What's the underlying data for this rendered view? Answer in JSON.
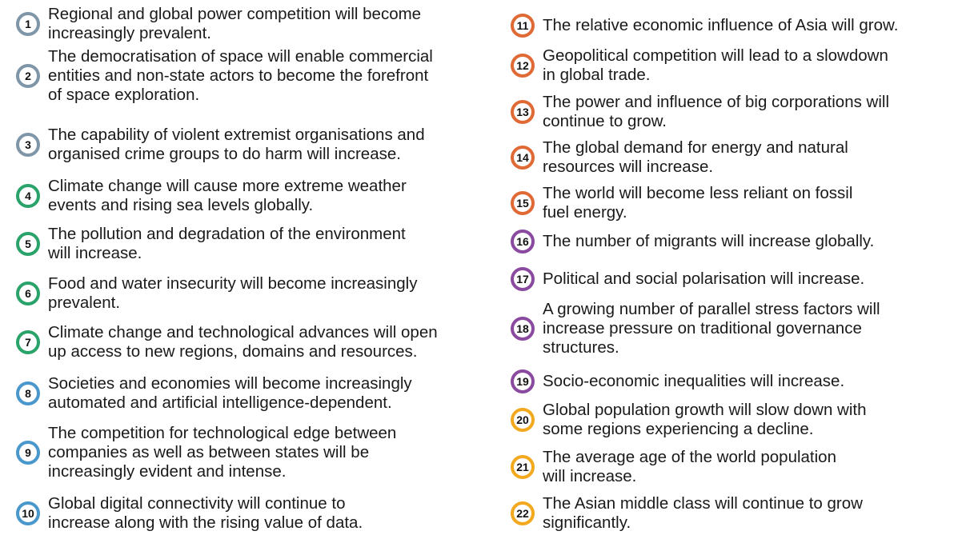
{
  "colors": {
    "grey": "#7f96a8",
    "green": "#2aa36b",
    "blue": "#4a97cc",
    "orange": "#e06a36",
    "purple": "#8a4aa0",
    "yellow": "#f2a91f"
  },
  "trends": [
    {
      "number": "1",
      "color": "#7f96a8",
      "lines": [
        "Regional and global power competition will become",
        "increasingly prevalent."
      ]
    },
    {
      "number": "2",
      "color": "#7f96a8",
      "lines": [
        "The democratisation of space will enable commercial",
        "entities and non-state actors to become the forefront",
        "of space exploration."
      ]
    },
    {
      "number": "3",
      "color": "#7f96a8",
      "lines": [
        "The capability of violent extremist organisations and",
        "organised crime groups to do harm will increase."
      ]
    },
    {
      "number": "4",
      "color": "#2aa36b",
      "lines": [
        "Climate change will cause more extreme weather",
        "events and rising sea levels globally."
      ]
    },
    {
      "number": "5",
      "color": "#2aa36b",
      "lines": [
        "The pollution and degradation of the environment",
        "will increase."
      ]
    },
    {
      "number": "6",
      "color": "#2aa36b",
      "lines": [
        "Food and water insecurity will become increasingly",
        "prevalent."
      ]
    },
    {
      "number": "7",
      "color": "#2aa36b",
      "lines": [
        "Climate change and technological advances will open",
        "up access to new regions, domains and resources."
      ]
    },
    {
      "number": "8",
      "color": "#4a97cc",
      "lines": [
        "Societies and economies will become increasingly",
        "automated and artificial intelligence-dependent."
      ]
    },
    {
      "number": "9",
      "color": "#4a97cc",
      "lines": [
        "The competition for technological edge between",
        "companies as well as between states will be",
        "increasingly evident and intense."
      ]
    },
    {
      "number": "10",
      "color": "#4a97cc",
      "lines": [
        "Global digital connectivity will continue to",
        "increase along with the rising value of data."
      ]
    },
    {
      "number": "11",
      "color": "#e06a36",
      "lines": [
        "The relative economic influence of Asia will grow."
      ]
    },
    {
      "number": "12",
      "color": "#e06a36",
      "lines": [
        "Geopolitical competition will lead to a slowdown",
        "in global trade."
      ]
    },
    {
      "number": "13",
      "color": "#e06a36",
      "lines": [
        "The power and influence of big corporations will",
        "continue to grow."
      ]
    },
    {
      "number": "14",
      "color": "#e06a36",
      "lines": [
        "The global demand for energy and natural",
        "resources will increase."
      ]
    },
    {
      "number": "15",
      "color": "#e06a36",
      "lines": [
        "The world will become less reliant on fossil",
        "fuel energy."
      ]
    },
    {
      "number": "16",
      "color": "#8a4aa0",
      "lines": [
        "The number of migrants will increase globally."
      ]
    },
    {
      "number": "17",
      "color": "#8a4aa0",
      "lines": [
        "Political and social polarisation will increase."
      ]
    },
    {
      "number": "18",
      "color": "#8a4aa0",
      "lines": [
        "A growing number of parallel stress factors will",
        "increase pressure on traditional governance",
        "structures."
      ]
    },
    {
      "number": "19",
      "color": "#8a4aa0",
      "lines": [
        "Socio-economic inequalities will increase."
      ]
    },
    {
      "number": "20",
      "color": "#f2a91f",
      "lines": [
        "Global population growth will slow down with",
        "some regions experiencing a decline."
      ]
    },
    {
      "number": "21",
      "color": "#f2a91f",
      "lines": [
        "The average age of the world population",
        "will increase."
      ]
    },
    {
      "number": "22",
      "color": "#f2a91f",
      "lines": [
        "The Asian middle class will continue to grow",
        "significantly."
      ]
    }
  ]
}
